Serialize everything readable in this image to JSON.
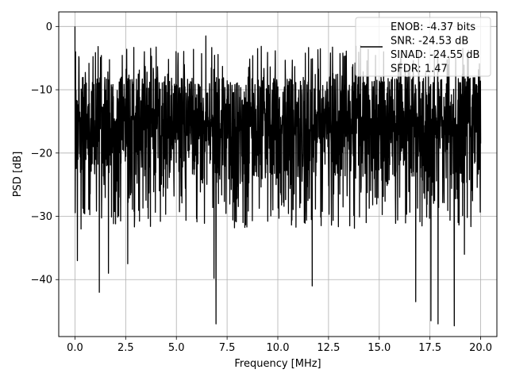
{
  "chart_data": {
    "type": "line",
    "title": "",
    "xlabel": "Frequency [MHz]",
    "ylabel": "PSD [dB]",
    "xlim": [
      -0.8,
      20.8
    ],
    "ylim": [
      -49,
      2.3
    ],
    "xticks": [
      0.0,
      2.5,
      5.0,
      7.5,
      10.0,
      12.5,
      15.0,
      17.5,
      20.0
    ],
    "xtick_labels": [
      "0.0",
      "2.5",
      "5.0",
      "7.5",
      "10.0",
      "12.5",
      "15.0",
      "17.5",
      "20.0"
    ],
    "yticks": [
      0,
      -10,
      -20,
      -30,
      -40
    ],
    "ytick_labels": [
      "0",
      "−10",
      "−20",
      "−30",
      "−40"
    ],
    "grid": true,
    "legend_position": "top-right",
    "legend": {
      "entries": [
        "ENOB: -4.37 bits",
        "SNR: -24.53 dB",
        "SINAD: -24.55 dB",
        "SFDR: 1.47"
      ]
    },
    "series": [
      {
        "color": "#000000",
        "x_range": [
          0,
          20
        ],
        "points": 2000,
        "envelope_note_free": true,
        "peak_values": [
          [
            0.0,
            0.0
          ],
          [
            0.03,
            -4.0
          ],
          [
            0.1,
            -17.0
          ],
          [
            0.12,
            -37.0
          ],
          [
            0.3,
            -32.0
          ],
          [
            1.2,
            -42.0
          ],
          [
            1.65,
            -39.0
          ],
          [
            2.6,
            -37.5
          ],
          [
            6.45,
            -1.5
          ],
          [
            6.85,
            -39.8
          ],
          [
            6.95,
            -47.0
          ],
          [
            9.0,
            -3.5
          ],
          [
            11.7,
            -41.0
          ],
          [
            16.8,
            -43.5
          ],
          [
            17.55,
            -46.5
          ],
          [
            17.9,
            -47.0
          ],
          [
            18.7,
            -47.3
          ],
          [
            19.2,
            -36.0
          ]
        ]
      }
    ]
  }
}
